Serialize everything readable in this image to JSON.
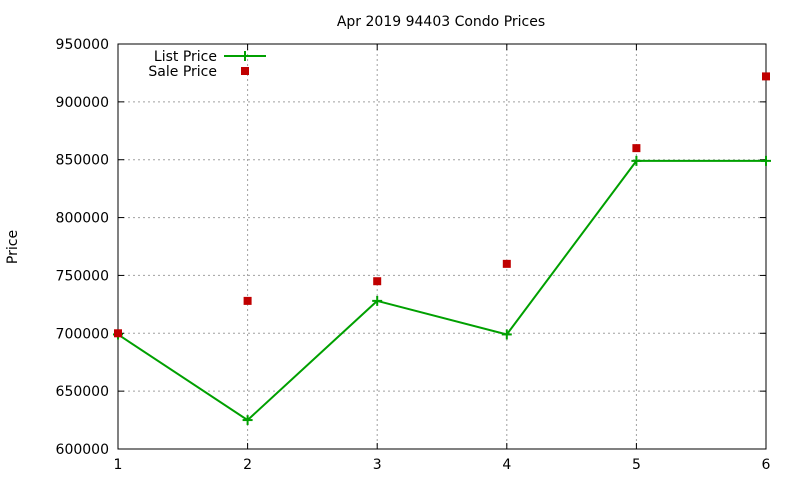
{
  "chart_data": {
    "type": "line",
    "title": "Apr 2019 94403 Condo Prices",
    "xlabel": "",
    "ylabel": "Price",
    "x": [
      1,
      2,
      3,
      4,
      5,
      6
    ],
    "xlim": [
      1,
      6
    ],
    "ylim": [
      600000,
      950000
    ],
    "xticks": [
      "1",
      "2",
      "3",
      "4",
      "5",
      "6"
    ],
    "yticks": [
      "600000",
      "650000",
      "700000",
      "750000",
      "800000",
      "850000",
      "900000",
      "950000"
    ],
    "grid": true,
    "legend_position": "top-left",
    "series": [
      {
        "name": "List Price",
        "style": "line-with-plus-markers",
        "color": "#00a000",
        "values": [
          699000,
          625000,
          728000,
          699000,
          849000,
          849000
        ]
      },
      {
        "name": "Sale Price",
        "style": "square-markers",
        "color": "#c00000",
        "values": [
          700000,
          728000,
          745000,
          760000,
          860000,
          922000
        ]
      }
    ]
  }
}
